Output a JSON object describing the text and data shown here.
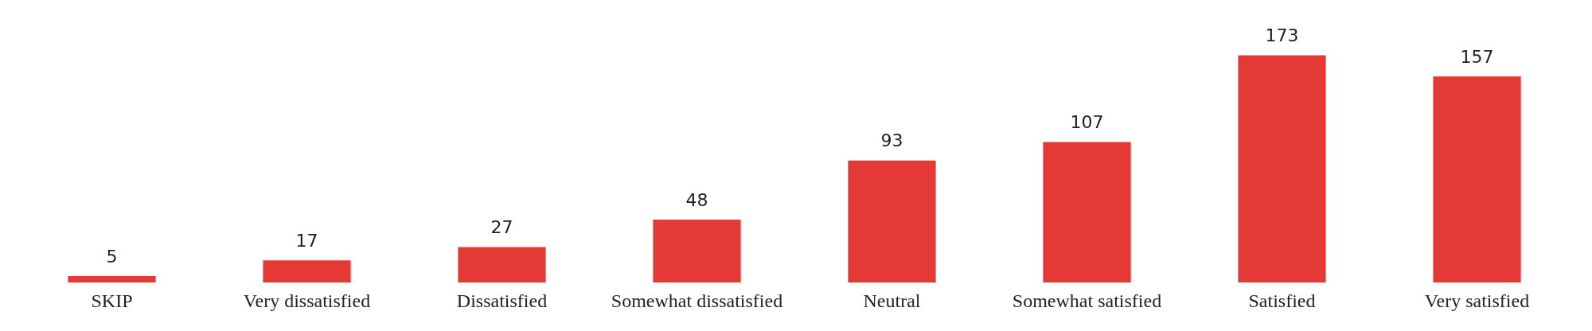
{
  "chart_data": {
    "type": "bar",
    "categories": [
      "SKIP",
      "Very dissatisfied",
      "Dissatisfied",
      "Somewhat dissatisfied",
      "Neutral",
      "Somewhat satisfied",
      "Satisfied",
      "Very satisfied"
    ],
    "values": [
      5,
      17,
      27,
      48,
      93,
      107,
      173,
      157
    ],
    "color": "#e53935",
    "data_labels": true,
    "grid": false,
    "legend": false
  }
}
